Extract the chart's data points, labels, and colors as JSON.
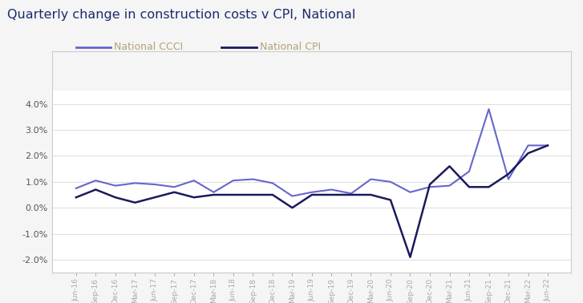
{
  "title": "Quarterly change in construction costs v CPI, National",
  "title_color": "#1a2b6e",
  "background_color": "#f5f5f5",
  "plot_background": "#ffffff",
  "legend_entries": [
    "National CCCI",
    "National CPI"
  ],
  "legend_text_color": "#b5a07a",
  "ccci_color": "#6666cc",
  "cpi_color": "#1a1a5e",
  "ylim": [
    -0.025,
    0.045
  ],
  "yticks": [
    -0.02,
    -0.01,
    0.0,
    0.01,
    0.02,
    0.03,
    0.04
  ],
  "grid_color": "#dddddd",
  "border_color": "#cccccc",
  "labels": [
    "Jun-16",
    "Sep-16",
    "Dec-16",
    "Mar-17",
    "Jun-17",
    "Sep-17",
    "Dec-17",
    "Mar-18",
    "Jun-18",
    "Sep-18",
    "Dec-18",
    "Mar-19",
    "Jun-19",
    "Sep-19",
    "Dec-19",
    "Mar-20",
    "Jun-20",
    "Sep-20",
    "Dec-20",
    "Mar-21",
    "Jun-21",
    "Sep-21",
    "Dec-21",
    "Mar-22",
    "Jun-22"
  ],
  "ccci": [
    0.0075,
    0.0105,
    0.0085,
    0.0095,
    0.009,
    0.008,
    0.0105,
    0.006,
    0.0105,
    0.011,
    0.0095,
    0.0045,
    0.006,
    0.007,
    0.0055,
    0.011,
    0.01,
    0.006,
    0.008,
    0.0085,
    0.014,
    0.038,
    0.011,
    0.024,
    0.024
  ],
  "cpi": [
    0.004,
    0.007,
    0.004,
    0.002,
    0.004,
    0.006,
    0.004,
    0.005,
    0.005,
    0.005,
    0.005,
    0.0,
    0.005,
    0.005,
    0.005,
    0.005,
    0.003,
    -0.019,
    0.009,
    0.016,
    0.008,
    0.008,
    0.013,
    0.021,
    0.024
  ]
}
